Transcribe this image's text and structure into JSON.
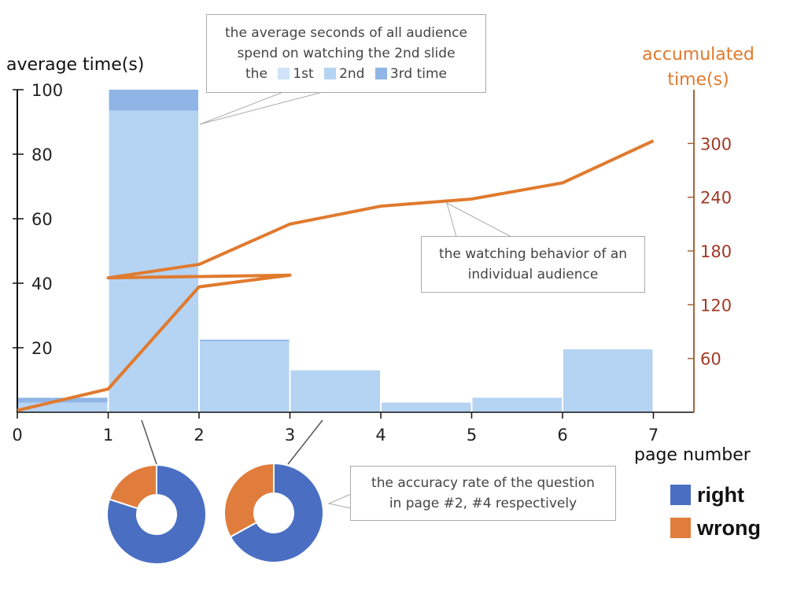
{
  "chart_data": [
    {
      "type": "bar",
      "stacked": true,
      "x": [
        0,
        1,
        2,
        3,
        4,
        5,
        6
      ],
      "xticks": [
        "0",
        "1",
        "2",
        "3",
        "4",
        "5",
        "6",
        "7"
      ],
      "xlim": [
        0,
        7
      ],
      "xlabel": "page number",
      "ylabel": "average time(s)",
      "ylim": [
        0,
        100
      ],
      "yticks": [
        "20",
        "40",
        "60",
        "80",
        "100"
      ],
      "series": [
        {
          "name": "1st",
          "color": "#cfe2f7",
          "values": [
            0,
            0,
            0,
            0,
            0,
            0,
            0
          ]
        },
        {
          "name": "2nd",
          "color": "#b5d3f2",
          "values": [
            3,
            93.5,
            22,
            13,
            3,
            4.5,
            19.5
          ]
        },
        {
          "name": "3rd time",
          "color": "#8fb5e6",
          "values": [
            1.5,
            6.5,
            0.5,
            0,
            0,
            0,
            0
          ]
        }
      ]
    },
    {
      "type": "line",
      "ylabel": "accumulated time(s)",
      "ylim": [
        0,
        360
      ],
      "yticks": [
        "60",
        "120",
        "180",
        "240",
        "300"
      ],
      "color": "#e07a2e",
      "points": [
        [
          0,
          2
        ],
        [
          1,
          26
        ],
        [
          2,
          140
        ],
        [
          3,
          153
        ],
        [
          1,
          150
        ],
        [
          2,
          165
        ],
        [
          3,
          210
        ],
        [
          4,
          230
        ],
        [
          5,
          238
        ],
        [
          6,
          256
        ],
        [
          7,
          303
        ]
      ]
    },
    {
      "type": "pie",
      "donut": true,
      "page": "#2",
      "slices": [
        {
          "name": "right",
          "value": 80,
          "color": "#4a6fc2"
        },
        {
          "name": "wrong",
          "value": 20,
          "color": "#e07d3c"
        }
      ]
    },
    {
      "type": "pie",
      "donut": true,
      "page": "#4",
      "slices": [
        {
          "name": "right",
          "value": 67,
          "color": "#4a6fc2"
        },
        {
          "name": "wrong",
          "value": 33,
          "color": "#e07d3c"
        }
      ]
    }
  ],
  "annotations": {
    "bar_callout": {
      "line1": "the average seconds of all audience",
      "line2": "spend on watching the 2nd slide",
      "prefix": "the",
      "legend": [
        "1st",
        "2nd",
        "3rd time"
      ]
    },
    "line_callout": {
      "line1": "the watching behavior of an",
      "line2": "individual audience"
    },
    "pie_callout": {
      "line1": "the accuracy rate of the question",
      "line2": "in page #2, #4 respectively"
    }
  },
  "legend": [
    {
      "label": "right",
      "color": "#4a6fc2"
    },
    {
      "label": "wrong",
      "color": "#e07d3c"
    }
  ]
}
